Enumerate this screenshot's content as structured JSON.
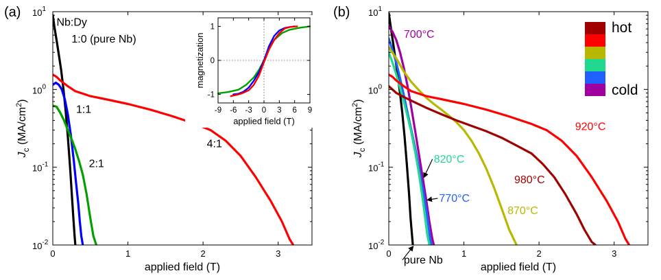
{
  "chart_data": [
    {
      "panel": "(a)",
      "type": "line",
      "title": "",
      "xlabel": "applied field (T)",
      "ylabel": "J_c (MA/cm^2)",
      "yscale": "log",
      "xlim": [
        0,
        3.45
      ],
      "ylim": [
        0.01,
        10
      ],
      "x_ticks": [
        0,
        1,
        2,
        3
      ],
      "y_ticks": [
        0.01,
        0.1,
        1,
        10
      ],
      "y_tick_labels": [
        {
          "base": "10",
          "exp": "-2"
        },
        {
          "base": "10",
          "exp": "-1"
        },
        {
          "base": "10",
          "exp": "0"
        },
        {
          "base": "10",
          "exp": "1"
        }
      ],
      "legend_title": "Nb:Dy",
      "series": [
        {
          "name": "1:0 (pure Nb)",
          "color": "#000000",
          "x": [
            0,
            0.02,
            0.05,
            0.08,
            0.11,
            0.14,
            0.17,
            0.2,
            0.23,
            0.25,
            0.27,
            0.29,
            0.3
          ],
          "y": [
            9.0,
            6.5,
            4.3,
            2.8,
            1.8,
            1.05,
            0.55,
            0.25,
            0.1,
            0.05,
            0.025,
            0.013,
            0.01
          ]
        },
        {
          "name": "1:1",
          "color": "#0000ff",
          "x": [
            0,
            0.04,
            0.08,
            0.12,
            0.16,
            0.2,
            0.24,
            0.28,
            0.31,
            0.34,
            0.36,
            0.38,
            0.4
          ],
          "y": [
            1.15,
            1.22,
            1.15,
            1.0,
            0.75,
            0.48,
            0.26,
            0.12,
            0.062,
            0.033,
            0.02,
            0.013,
            0.01
          ]
        },
        {
          "name": "2:1",
          "color": "#00a000",
          "x": [
            0,
            0.05,
            0.1,
            0.15,
            0.2,
            0.25,
            0.3,
            0.35,
            0.4,
            0.45,
            0.5,
            0.54,
            0.58
          ],
          "y": [
            0.62,
            0.6,
            0.5,
            0.4,
            0.3,
            0.23,
            0.17,
            0.12,
            0.08,
            0.045,
            0.022,
            0.013,
            0.01
          ]
        },
        {
          "name": "4:1",
          "color": "#ff0000",
          "x": [
            0,
            0.05,
            0.1,
            0.2,
            0.3,
            0.5,
            0.7,
            1.0,
            1.3,
            1.6,
            1.9,
            2.1,
            2.3,
            2.5,
            2.7,
            2.9,
            3.05,
            3.15,
            3.2
          ],
          "y": [
            1.55,
            1.45,
            1.3,
            1.1,
            0.95,
            0.82,
            0.75,
            0.65,
            0.55,
            0.45,
            0.36,
            0.3,
            0.22,
            0.14,
            0.075,
            0.037,
            0.02,
            0.012,
            0.01
          ]
        }
      ],
      "annotations": [
        {
          "text": "Nb:Dy",
          "x": 0.05,
          "y": 6.6
        },
        {
          "text": "1:0 (pure Nb)",
          "x": 0.25,
          "y": 4.0
        },
        {
          "text": "1:1",
          "x": 0.31,
          "y": 0.5
        },
        {
          "text": "2:1",
          "x": 0.48,
          "y": 0.1
        },
        {
          "text": "4:1",
          "x": 2.05,
          "y": 0.18
        }
      ],
      "inset": {
        "xlabel": "applied field (T)",
        "ylabel": "magnetization",
        "xlim": [
          -9,
          9
        ],
        "ylim": [
          -1.25,
          1.25
        ],
        "x_ticks": [
          -9,
          -6,
          -3,
          0,
          3,
          6,
          9
        ],
        "y_ticks": [
          -1,
          0,
          1
        ],
        "series": [
          {
            "name": "2:1",
            "color": "#00a000",
            "x": [
              -9,
              -7,
              -5,
              -3.5,
              -2,
              -1,
              0,
              1,
              2,
              3.5,
              5,
              7,
              9
            ],
            "y": [
              -0.97,
              -0.93,
              -0.86,
              -0.72,
              -0.5,
              -0.28,
              0,
              0.35,
              0.6,
              0.8,
              0.9,
              0.96,
              1.0
            ]
          },
          {
            "name": "1:1",
            "color": "#0000ff",
            "x": [
              -6,
              -5,
              -4,
              -3,
              -2,
              -1,
              0,
              1,
              2,
              3,
              4,
              5,
              6
            ],
            "y": [
              -1.0,
              -0.98,
              -0.92,
              -0.8,
              -0.6,
              -0.35,
              0,
              0.42,
              0.72,
              0.88,
              0.95,
              0.98,
              1.0
            ]
          },
          {
            "name": "4:1",
            "color": "#ff0000",
            "x": [
              -6.5,
              -5,
              -4,
              -3,
              -2,
              -1,
              0,
              1,
              2,
              3,
              4,
              5,
              6.5
            ],
            "y": [
              -1.05,
              -1.0,
              -0.95,
              -0.88,
              -0.72,
              -0.45,
              -0.05,
              0.32,
              0.6,
              0.8,
              0.93,
              0.98,
              1.0
            ]
          }
        ]
      }
    },
    {
      "panel": "(b)",
      "type": "line",
      "title": "",
      "xlabel": "applied field (T)",
      "ylabel": "J_c (MA/cm^2)",
      "yscale": "log",
      "xlim": [
        0,
        3.45
      ],
      "ylim": [
        0.01,
        10
      ],
      "x_ticks": [
        0,
        1,
        2,
        3
      ],
      "y_ticks": [
        0.01,
        0.1,
        1,
        10
      ],
      "y_tick_labels": [
        {
          "base": "10",
          "exp": "-2"
        },
        {
          "base": "10",
          "exp": "-1"
        },
        {
          "base": "10",
          "exp": "0"
        },
        {
          "base": "10",
          "exp": "1"
        }
      ],
      "legend": {
        "hot_label": "hot",
        "cold_label": "cold",
        "swatches": [
          "#a00000",
          "#ff0000",
          "#b8b800",
          "#20d890",
          "#2060ff",
          "#a000a0"
        ]
      },
      "series": [
        {
          "name": "pure Nb",
          "color": "#000000",
          "x": [
            0,
            0.03,
            0.06,
            0.09,
            0.12,
            0.15,
            0.18,
            0.21,
            0.24,
            0.27,
            0.29,
            0.31,
            0.32
          ],
          "y": [
            9.5,
            6.0,
            3.8,
            2.4,
            1.5,
            0.9,
            0.5,
            0.25,
            0.11,
            0.045,
            0.022,
            0.013,
            0.01
          ]
        },
        {
          "name": "700°C",
          "color": "#a000a0",
          "x": [
            0,
            0.05,
            0.1,
            0.15,
            0.2,
            0.25,
            0.3,
            0.35,
            0.4,
            0.45,
            0.5,
            0.54,
            0.58,
            0.6
          ],
          "y": [
            6.5,
            5.5,
            4.3,
            3.0,
            1.9,
            1.1,
            0.58,
            0.3,
            0.15,
            0.075,
            0.037,
            0.02,
            0.012,
            0.01
          ]
        },
        {
          "name": "770°C",
          "color": "#2060ff",
          "x": [
            0,
            0.05,
            0.1,
            0.15,
            0.2,
            0.25,
            0.3,
            0.35,
            0.4,
            0.45,
            0.5,
            0.53,
            0.55,
            0.57
          ],
          "y": [
            4.5,
            3.2,
            2.2,
            1.4,
            0.85,
            0.5,
            0.3,
            0.18,
            0.1,
            0.055,
            0.028,
            0.017,
            0.012,
            0.01
          ]
        },
        {
          "name": "820°C",
          "color": "#20d890",
          "x": [
            0,
            0.05,
            0.1,
            0.15,
            0.2,
            0.25,
            0.3,
            0.35,
            0.4,
            0.45,
            0.48,
            0.51,
            0.54
          ],
          "y": [
            3.0,
            2.2,
            1.55,
            1.05,
            0.7,
            0.45,
            0.28,
            0.16,
            0.085,
            0.04,
            0.024,
            0.014,
            0.01
          ]
        },
        {
          "name": "870°C",
          "color": "#b8b800",
          "x": [
            0,
            0.1,
            0.2,
            0.3,
            0.4,
            0.5,
            0.6,
            0.7,
            0.8,
            0.9,
            1.0,
            1.1,
            1.2,
            1.3,
            1.4,
            1.5,
            1.6,
            1.7
          ],
          "y": [
            3.5,
            2.5,
            1.7,
            1.25,
            0.98,
            0.78,
            0.65,
            0.55,
            0.46,
            0.38,
            0.3,
            0.22,
            0.15,
            0.095,
            0.055,
            0.03,
            0.016,
            0.01
          ]
        },
        {
          "name": "920°C",
          "color": "#ff0000",
          "x": [
            0,
            0.05,
            0.1,
            0.2,
            0.3,
            0.5,
            0.7,
            1.0,
            1.3,
            1.6,
            1.9,
            2.1,
            2.3,
            2.5,
            2.7,
            2.9,
            3.05,
            3.15,
            3.2
          ],
          "y": [
            1.55,
            1.45,
            1.3,
            1.1,
            0.95,
            0.82,
            0.75,
            0.65,
            0.55,
            0.45,
            0.36,
            0.3,
            0.22,
            0.14,
            0.075,
            0.037,
            0.02,
            0.012,
            0.01
          ]
        },
        {
          "name": "980°C",
          "color": "#a00000",
          "x": [
            0,
            0.1,
            0.2,
            0.35,
            0.5,
            0.7,
            0.9,
            1.1,
            1.3,
            1.5,
            1.7,
            1.9,
            2.05,
            2.2,
            2.35,
            2.5,
            2.6,
            2.7,
            2.75
          ],
          "y": [
            1.1,
            0.9,
            0.8,
            0.68,
            0.58,
            0.48,
            0.4,
            0.34,
            0.29,
            0.24,
            0.19,
            0.15,
            0.11,
            0.075,
            0.045,
            0.025,
            0.016,
            0.011,
            0.01
          ]
        }
      ],
      "annotations": [
        {
          "text": "700°C",
          "x": 0.2,
          "y": 4.6,
          "color": "#a000a0"
        },
        {
          "text": "920°C",
          "x": 2.48,
          "y": 0.3,
          "color": "#ff0000"
        },
        {
          "text": "820°C",
          "x": 0.6,
          "y": 0.115,
          "color": "#20d890",
          "arrow_to": [
            0.47,
            0.075
          ]
        },
        {
          "text": "980°C",
          "x": 1.67,
          "y": 0.062,
          "color": "#a00000"
        },
        {
          "text": "770°C",
          "x": 0.67,
          "y": 0.036,
          "color": "#2060ff",
          "arrow_to": [
            0.52,
            0.038
          ]
        },
        {
          "text": "870°C",
          "x": 1.58,
          "y": 0.025,
          "color": "#b8b800"
        },
        {
          "text": "pure Nb",
          "x": 0.2,
          "y": 0.0058,
          "color": "#000000",
          "arrow_to": [
            0.32,
            0.0095
          ]
        }
      ]
    }
  ]
}
